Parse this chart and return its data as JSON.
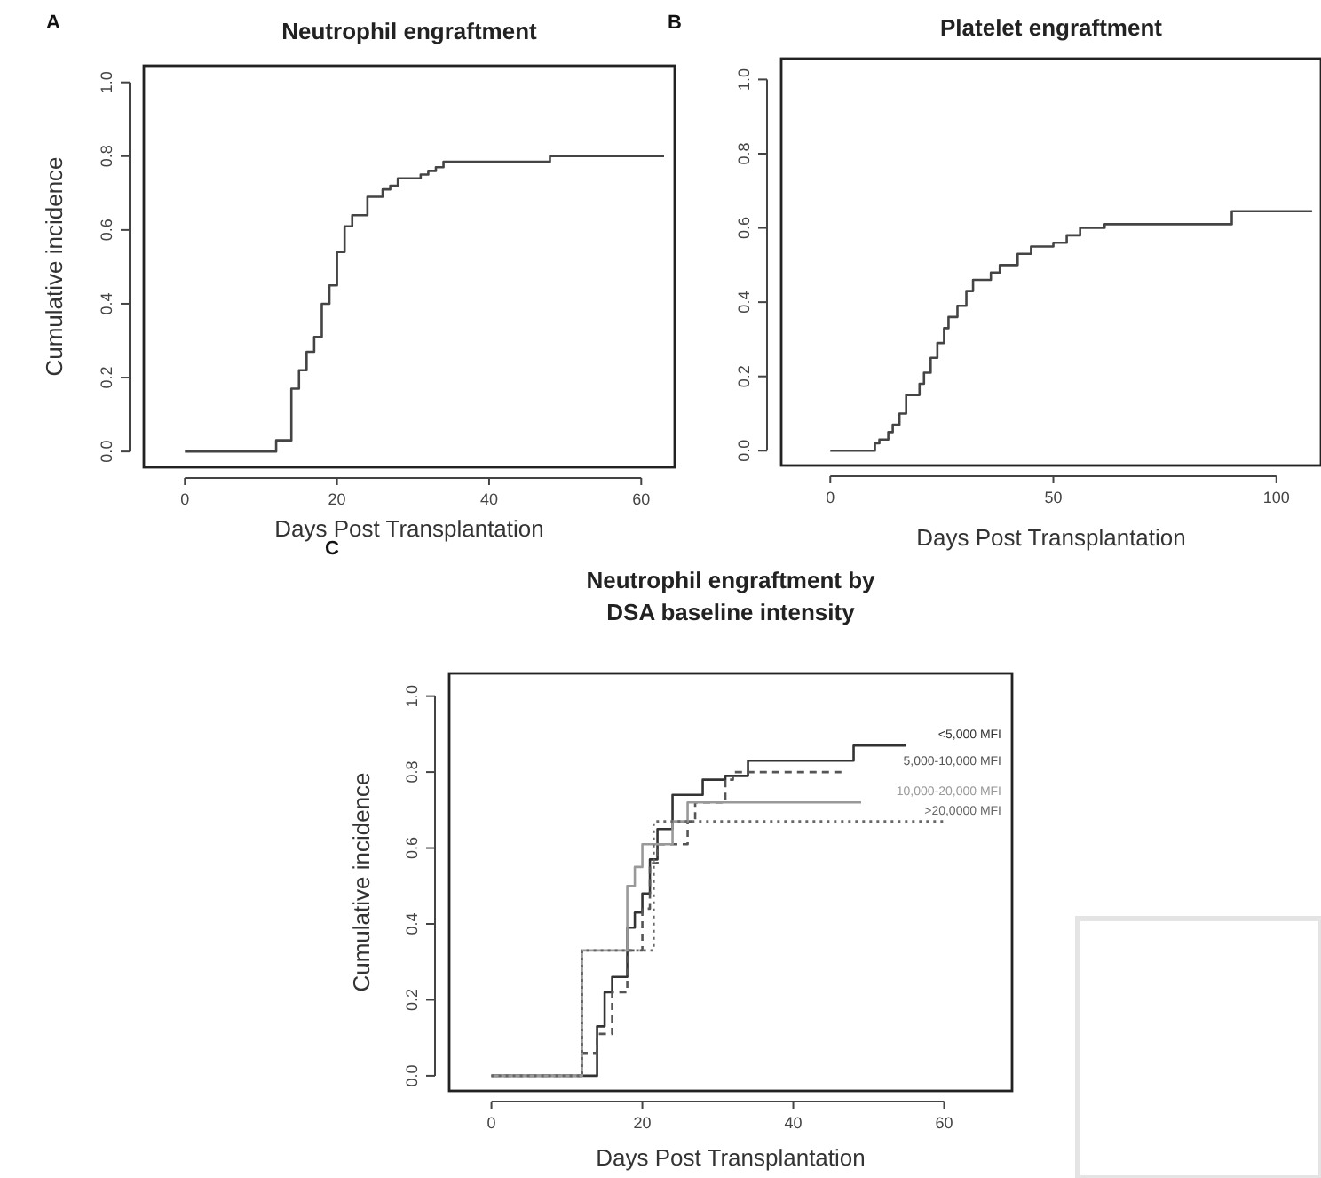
{
  "chart_data": [
    {
      "type": "step",
      "title": "Neutrophil engraftment",
      "xlabel": "Days Post Transplantation",
      "ylabel": "Cumulative incidence",
      "annotations": [
        "A"
      ],
      "xlim": [
        -5.4,
        64.4
      ],
      "ylim": [
        -0.043,
        1.045
      ],
      "xticks": [
        0,
        20,
        40,
        60
      ],
      "yticks": [
        {
          "value": 0,
          "label": "0.0"
        },
        {
          "value": 0.2,
          "label": "0.2"
        },
        {
          "value": 0.4,
          "label": "0.4"
        },
        {
          "value": 0.6,
          "label": "0.6"
        },
        {
          "value": 0.8,
          "label": "0.8"
        },
        {
          "value": 1,
          "label": "1.0"
        }
      ],
      "grid": false,
      "legend": false,
      "marker": "none",
      "series": [
        {
          "color": "#444444",
          "line_style": "solid",
          "x": [
            0,
            12,
            14,
            15,
            16,
            17,
            18,
            19,
            20,
            21,
            22,
            24,
            26,
            27,
            28,
            31,
            32,
            33,
            34,
            48,
            63
          ],
          "values": [
            0,
            0.03,
            0.17,
            0.22,
            0.27,
            0.31,
            0.4,
            0.45,
            0.54,
            0.61,
            0.64,
            0.69,
            0.71,
            0.72,
            0.74,
            0.75,
            0.76,
            0.77,
            0.785,
            0.8,
            0.8
          ]
        }
      ]
    },
    {
      "type": "step",
      "title": "Platelet engraftment",
      "xlabel": "Days Post Transplantation",
      "annotations": [
        "B"
      ],
      "xlim": [
        -11,
        110
      ],
      "ylim": [
        -0.04,
        1.056
      ],
      "xticks": [
        0,
        50,
        100
      ],
      "yticks": [
        {
          "value": 0,
          "label": "0.0"
        },
        {
          "value": 0.2,
          "label": "0.2"
        },
        {
          "value": 0.4,
          "label": "0.4"
        },
        {
          "value": 0.6,
          "label": "0.6"
        },
        {
          "value": 0.8,
          "label": "0.8"
        },
        {
          "value": 1,
          "label": "1.0"
        }
      ],
      "grid": false,
      "legend": false,
      "marker": "none",
      "series": [
        {
          "color": "#444444",
          "line_style": "solid",
          "x": [
            0,
            10,
            11,
            13,
            14,
            15.5,
            17,
            20,
            21,
            22.5,
            24,
            25.5,
            26.5,
            28.5,
            30.5,
            32,
            36,
            38,
            42,
            45,
            50,
            53,
            56,
            61.5,
            90,
            108
          ],
          "values": [
            0,
            0.02,
            0.03,
            0.05,
            0.07,
            0.1,
            0.15,
            0.18,
            0.21,
            0.25,
            0.29,
            0.33,
            0.36,
            0.39,
            0.43,
            0.46,
            0.48,
            0.5,
            0.53,
            0.55,
            0.56,
            0.58,
            0.6,
            0.61,
            0.645,
            0.645
          ]
        }
      ]
    },
    {
      "type": "step",
      "title": "Neutrophil engraftment by\nDSA baseline intensity",
      "xlabel": "Days Post Transplantation",
      "ylabel": "Cumulative incidence",
      "annotations": [
        "C"
      ],
      "xlim": [
        -5.6,
        69
      ],
      "ylim": [
        -0.04,
        1.06
      ],
      "xticks": [
        0,
        20,
        40,
        60
      ],
      "yticks": [
        {
          "value": 0,
          "label": "0.0"
        },
        {
          "value": 0.2,
          "label": "0.2"
        },
        {
          "value": 0.4,
          "label": "0.4"
        },
        {
          "value": 0.6,
          "label": "0.6"
        },
        {
          "value": 0.8,
          "label": "0.8"
        },
        {
          "value": 1,
          "label": "1.0"
        }
      ],
      "grid": false,
      "legend": "right",
      "marker": "none",
      "series": [
        {
          "name": "<5,000 MFI",
          "color": "#333333",
          "line_style": "solid",
          "x": [
            0,
            14,
            15,
            16,
            18,
            19,
            20,
            21,
            22,
            24,
            28,
            31,
            34,
            48,
            55
          ],
          "values": [
            0,
            0.13,
            0.22,
            0.26,
            0.39,
            0.43,
            0.48,
            0.57,
            0.65,
            0.74,
            0.78,
            0.79,
            0.83,
            0.87,
            0.87
          ]
        },
        {
          "name": "5,000-10,000 MFI",
          "color": "#555555",
          "line_style": "dashed",
          "x": [
            0,
            12,
            14,
            16,
            18,
            20,
            21,
            22,
            26,
            27,
            31,
            32,
            47
          ],
          "values": [
            0,
            0.06,
            0.11,
            0.22,
            0.33,
            0.44,
            0.56,
            0.61,
            0.67,
            0.72,
            0.78,
            0.8,
            0.8
          ]
        },
        {
          "name": "10,000-20,000 MFI",
          "color": "#999999",
          "line_style": "solid",
          "x": [
            0,
            12,
            18,
            19,
            20,
            24,
            26,
            49
          ],
          "values": [
            0,
            0.33,
            0.5,
            0.55,
            0.61,
            0.67,
            0.72,
            0.72
          ]
        },
        {
          "name": ">20,0000 MFI",
          "color": "#666666",
          "line_style": "dotted",
          "x": [
            0,
            12,
            21,
            21.5,
            60
          ],
          "values": [
            0,
            0.33,
            0.33,
            0.67,
            0.67
          ]
        }
      ]
    }
  ]
}
